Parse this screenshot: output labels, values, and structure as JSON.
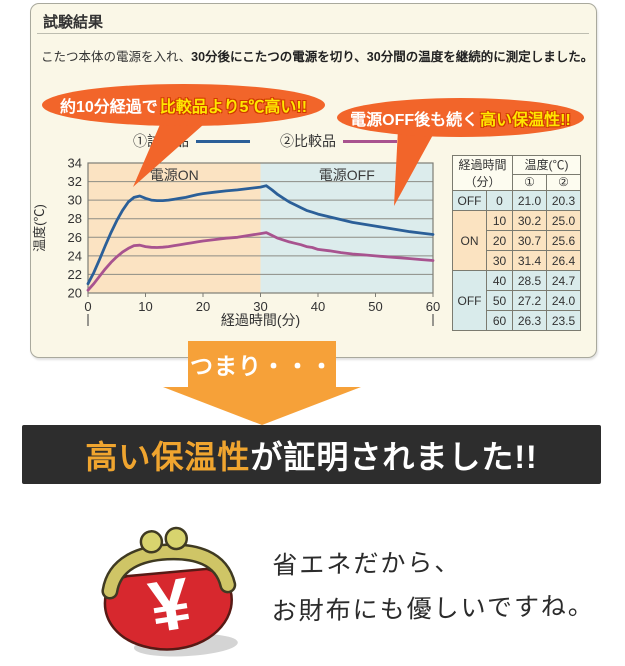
{
  "panel": {
    "title": "試験結果",
    "description_normal": "こたつ本体の電源を入れ、",
    "description_bold": "30分後にこたつの電源を切り、30分間の温度を継続的に測定しました。"
  },
  "callouts": {
    "left": {
      "normal": "約10分経過で",
      "highlight": "比較品より5℃高い!!"
    },
    "right": {
      "normal": "電源OFF後も続く",
      "highlight": "高い保温性!!"
    }
  },
  "legend": {
    "series1": "①試験品",
    "series2": "②比較品"
  },
  "chart_data": {
    "type": "line",
    "title": "",
    "xlabel": "経過時間(分)",
    "ylabel": "温度(℃)",
    "xlim": [
      0,
      60
    ],
    "ylim": [
      20,
      34
    ],
    "ytick_step": 2,
    "x_ticks": [
      0,
      10,
      20,
      30,
      40,
      50,
      60
    ],
    "grid": true,
    "legend_position": "top",
    "regions": [
      {
        "label": "電源ON",
        "x_range": [
          0,
          30
        ],
        "color": "#fbe3c2"
      },
      {
        "label": "電源OFF",
        "x_range": [
          30,
          60
        ],
        "color": "#dcecec"
      }
    ],
    "series": [
      {
        "name": "①試験品",
        "color": "#2b5f98",
        "x": [
          0,
          10,
          20,
          30,
          40,
          50,
          60
        ],
        "values": [
          21.0,
          30.2,
          30.7,
          31.4,
          28.5,
          27.2,
          26.3
        ],
        "curve": [
          [
            0,
            21.0
          ],
          [
            1,
            22.2
          ],
          [
            2,
            23.6
          ],
          [
            3,
            25.1
          ],
          [
            4,
            26.5
          ],
          [
            5,
            27.8
          ],
          [
            6,
            28.9
          ],
          [
            7,
            29.8
          ],
          [
            8,
            30.3
          ],
          [
            9,
            30.45
          ],
          [
            10,
            30.2
          ],
          [
            11,
            30.0
          ],
          [
            12,
            29.95
          ],
          [
            13,
            29.95
          ],
          [
            14,
            30.0
          ],
          [
            15,
            30.1
          ],
          [
            16,
            30.2
          ],
          [
            17,
            30.3
          ],
          [
            18,
            30.45
          ],
          [
            19,
            30.6
          ],
          [
            20,
            30.7
          ],
          [
            22,
            30.85
          ],
          [
            24,
            31.0
          ],
          [
            26,
            31.1
          ],
          [
            28,
            31.25
          ],
          [
            30,
            31.4
          ],
          [
            31,
            31.55
          ],
          [
            32,
            31.1
          ],
          [
            33,
            30.6
          ],
          [
            34,
            30.2
          ],
          [
            35,
            29.8
          ],
          [
            36,
            29.5
          ],
          [
            37,
            29.2
          ],
          [
            38,
            28.9
          ],
          [
            39,
            28.7
          ],
          [
            40,
            28.5
          ],
          [
            42,
            28.2
          ],
          [
            44,
            27.9
          ],
          [
            46,
            27.6
          ],
          [
            48,
            27.4
          ],
          [
            50,
            27.2
          ],
          [
            52,
            27.0
          ],
          [
            54,
            26.8
          ],
          [
            56,
            26.6
          ],
          [
            58,
            26.45
          ],
          [
            60,
            26.3
          ]
        ]
      },
      {
        "name": "②比較品",
        "color": "#a8538f",
        "x": [
          0,
          10,
          20,
          30,
          40,
          50,
          60
        ],
        "values": [
          20.3,
          25.0,
          25.6,
          26.4,
          24.7,
          24.0,
          23.5
        ],
        "curve": [
          [
            0,
            20.3
          ],
          [
            1,
            21.0
          ],
          [
            2,
            21.8
          ],
          [
            3,
            22.6
          ],
          [
            4,
            23.3
          ],
          [
            5,
            23.9
          ],
          [
            6,
            24.4
          ],
          [
            7,
            24.8
          ],
          [
            8,
            25.1
          ],
          [
            9,
            25.15
          ],
          [
            10,
            25.0
          ],
          [
            11,
            24.92
          ],
          [
            12,
            24.9
          ],
          [
            13,
            24.93
          ],
          [
            14,
            25.0
          ],
          [
            15,
            25.1
          ],
          [
            16,
            25.2
          ],
          [
            17,
            25.3
          ],
          [
            18,
            25.4
          ],
          [
            19,
            25.5
          ],
          [
            20,
            25.6
          ],
          [
            22,
            25.75
          ],
          [
            24,
            25.9
          ],
          [
            26,
            26.0
          ],
          [
            28,
            26.2
          ],
          [
            30,
            26.4
          ],
          [
            31,
            26.5
          ],
          [
            32,
            26.2
          ],
          [
            33,
            25.9
          ],
          [
            34,
            25.7
          ],
          [
            35,
            25.5
          ],
          [
            36,
            25.35
          ],
          [
            37,
            25.2
          ],
          [
            38,
            25.0
          ],
          [
            39,
            24.9
          ],
          [
            40,
            24.7
          ],
          [
            42,
            24.55
          ],
          [
            44,
            24.35
          ],
          [
            46,
            24.2
          ],
          [
            48,
            24.1
          ],
          [
            50,
            24.0
          ],
          [
            52,
            23.9
          ],
          [
            54,
            23.8
          ],
          [
            56,
            23.7
          ],
          [
            58,
            23.6
          ],
          [
            60,
            23.5
          ]
        ]
      }
    ]
  },
  "table": {
    "header": {
      "time_label_1": "経過時間",
      "time_label_2": "（分）",
      "temp_label": "温度(℃)",
      "col1": "①",
      "col2": "②"
    },
    "rows": [
      {
        "state": "OFF",
        "stateRows": 1,
        "bg": "off",
        "time": "0",
        "v1": "21.0",
        "v2": "20.3"
      },
      {
        "state": "ON",
        "stateRows": 3,
        "bg": "on",
        "time": "10",
        "v1": "30.2",
        "v2": "25.0"
      },
      {
        "bg": "on",
        "time": "20",
        "v1": "30.7",
        "v2": "25.6"
      },
      {
        "bg": "on",
        "time": "30",
        "v1": "31.4",
        "v2": "26.4"
      },
      {
        "state": "OFF",
        "stateRows": 3,
        "bg": "off",
        "time": "40",
        "v1": "28.5",
        "v2": "24.7"
      },
      {
        "bg": "off",
        "time": "50",
        "v1": "27.2",
        "v2": "24.0"
      },
      {
        "bg": "off",
        "time": "60",
        "v1": "26.3",
        "v2": "23.5"
      }
    ]
  },
  "arrow_label": "つまり・・・",
  "banner": {
    "highlight": "高い保温性",
    "rest": "が証明されました!!"
  },
  "footer": {
    "yen": "¥",
    "line1": "省エネだから、",
    "line2": "お財布にも優しいですね。"
  },
  "colors": {
    "bubble_orange": "#f2652a",
    "highlight_yellow": "#ffe600",
    "highlight_outline_red": "#cf3a00",
    "arrow_orange": "#f6a139",
    "banner_bg": "#2d2d2d",
    "banner_accent": "#f0a52f",
    "panel_bg": "#faf7e7",
    "region_on": "#fbe3c2",
    "region_off": "#dcecec",
    "series1_blue": "#2b5f98",
    "series2_purple": "#a8538f",
    "purse_red": "#d7282e",
    "purse_gold": "#cfc566"
  }
}
